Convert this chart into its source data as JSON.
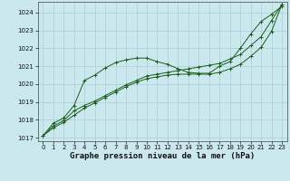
{
  "xlabel": "Graphe pression niveau de la mer (hPa)",
  "ylim": [
    1016.8,
    1024.6
  ],
  "xlim": [
    -0.5,
    23.5
  ],
  "yticks": [
    1017,
    1018,
    1019,
    1020,
    1021,
    1022,
    1023,
    1024
  ],
  "xticks": [
    0,
    1,
    2,
    3,
    4,
    5,
    6,
    7,
    8,
    9,
    10,
    11,
    12,
    13,
    14,
    15,
    16,
    17,
    18,
    19,
    20,
    21,
    22,
    23
  ],
  "bg_color": "#cce8ef",
  "grid_color": "#aacdd6",
  "line_color": "#1a5e1a",
  "line1_y": [
    1017.1,
    1017.8,
    1018.1,
    1018.8,
    1020.2,
    1020.5,
    1020.9,
    1021.2,
    1021.35,
    1021.45,
    1021.45,
    1021.25,
    1021.1,
    1020.85,
    1020.65,
    1020.6,
    1020.6,
    1021.0,
    1021.25,
    1022.0,
    1022.8,
    1023.5,
    1023.9,
    1024.35
  ],
  "line2_y": [
    1017.1,
    1017.65,
    1017.95,
    1018.5,
    1018.8,
    1019.05,
    1019.35,
    1019.65,
    1019.95,
    1020.2,
    1020.45,
    1020.55,
    1020.65,
    1020.75,
    1020.85,
    1020.95,
    1021.05,
    1021.15,
    1021.4,
    1021.65,
    1022.15,
    1022.65,
    1023.55,
    1024.45
  ],
  "line3_y": [
    1017.1,
    1017.55,
    1017.85,
    1018.25,
    1018.65,
    1018.95,
    1019.25,
    1019.55,
    1019.85,
    1020.1,
    1020.3,
    1020.4,
    1020.5,
    1020.55,
    1020.55,
    1020.55,
    1020.55,
    1020.65,
    1020.85,
    1021.1,
    1021.55,
    1022.05,
    1022.95,
    1024.45
  ],
  "tick_fontsize": 5.0,
  "xlabel_fontsize": 6.5
}
